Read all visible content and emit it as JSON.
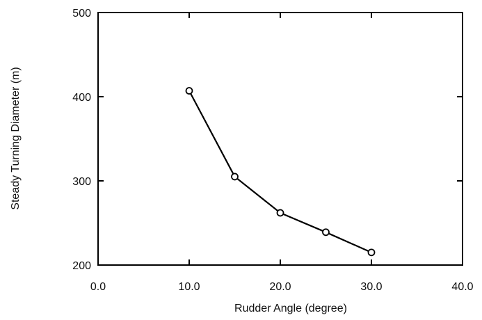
{
  "chart_data": {
    "type": "line",
    "title": "",
    "xlabel": "Rudder Angle (degree)",
    "ylabel": "Steady Turning Diameter (m)",
    "xlim": [
      0,
      40
    ],
    "ylim": [
      200,
      500
    ],
    "x_ticks": [
      0,
      10,
      20,
      30,
      40
    ],
    "x_tick_labels": [
      "0.0",
      "10.0",
      "20.0",
      "30.0",
      "40.0"
    ],
    "y_ticks": [
      200,
      300,
      400,
      500
    ],
    "y_tick_labels": [
      "200",
      "300",
      "400",
      "500"
    ],
    "grid": false,
    "legend": "none",
    "series": [
      {
        "x": [
          10,
          15,
          20,
          25,
          30
        ],
        "values": [
          407,
          305,
          262,
          239,
          215
        ],
        "marker": "open-circle",
        "color": "#000000"
      }
    ]
  }
}
